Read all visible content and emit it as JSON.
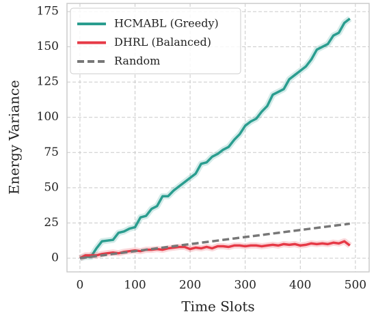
{
  "chart_data": {
    "type": "line",
    "x_label": "Time Slots",
    "y_label": "Energy Variance",
    "x": [
      0,
      10,
      20,
      30,
      40,
      50,
      60,
      70,
      80,
      90,
      100,
      110,
      120,
      130,
      140,
      150,
      160,
      170,
      180,
      190,
      200,
      210,
      220,
      230,
      240,
      250,
      260,
      270,
      280,
      290,
      300,
      310,
      320,
      330,
      340,
      350,
      360,
      370,
      380,
      390,
      400,
      410,
      420,
      430,
      440,
      450,
      460,
      470,
      480,
      490
    ],
    "series": [
      {
        "name": "HCMABL (Greedy)",
        "color": "#2a9d8f",
        "dash": false,
        "values": [
          0,
          1,
          1,
          7,
          12,
          12.5,
          13,
          18,
          19,
          21,
          22,
          29,
          30,
          35,
          37,
          44,
          44,
          48,
          51,
          54,
          57,
          60,
          67,
          68,
          72,
          74,
          77,
          79,
          84,
          88,
          94,
          97,
          99,
          104,
          108,
          116,
          118,
          120,
          127,
          130,
          133,
          136,
          141,
          148,
          150,
          152,
          158,
          160,
          167,
          170
        ]
      },
      {
        "name": "DHRL (Balanced)",
        "color": "#e63946",
        "dash": false,
        "values": [
          0,
          2,
          2,
          2,
          3,
          3.5,
          4,
          3.5,
          4.5,
          5,
          5.5,
          5,
          6,
          6,
          6.5,
          6,
          7,
          7.5,
          8,
          8,
          6.5,
          7.5,
          7,
          8,
          7,
          8.5,
          8.5,
          8,
          9,
          9,
          8.5,
          9,
          9,
          8.5,
          9,
          9.5,
          9,
          10,
          9.5,
          10,
          9,
          9.5,
          10.5,
          10,
          10.5,
          10,
          11,
          10.5,
          12,
          9
        ]
      },
      {
        "name": "Random",
        "color": "#777777",
        "dash": true,
        "values": [
          0,
          0.5,
          1,
          1.5,
          2,
          2.5,
          3,
          3.5,
          4,
          4.5,
          5,
          5.5,
          6,
          6.5,
          7,
          7.5,
          8,
          8.5,
          9,
          9.5,
          10,
          10.5,
          11,
          11.5,
          12,
          12.5,
          13,
          13.5,
          14,
          14.5,
          15,
          15.5,
          16,
          16.5,
          17,
          17.5,
          18,
          18.5,
          19,
          19.5,
          20,
          20.5,
          21,
          21.5,
          22,
          22.5,
          23,
          23.5,
          24,
          24.5
        ]
      }
    ],
    "xlim": [
      -23.5,
      525
    ],
    "xticks": [
      0,
      100,
      200,
      300,
      400,
      500
    ],
    "ylim": [
      -9.7,
      180.8
    ],
    "yticks": [
      0,
      25,
      50,
      75,
      100,
      125,
      150,
      175
    ],
    "grid": true,
    "legend": "upper left"
  }
}
